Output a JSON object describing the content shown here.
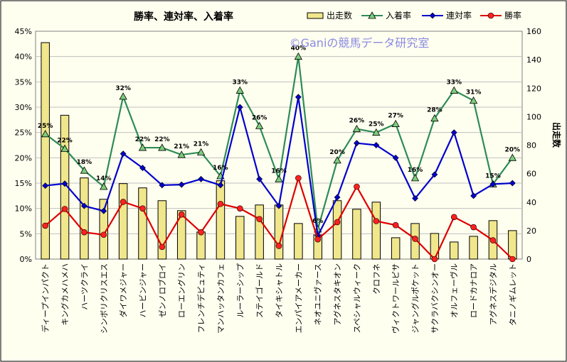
{
  "chart_data": {
    "type": "bar-line-combo",
    "title": "勝率、連対率、入着率",
    "watermark": "©Ganiの競馬データ研究室",
    "y2label": "出走数",
    "ylim": [
      0,
      45
    ],
    "y2lim": [
      0,
      160
    ],
    "yticks": [
      "0%",
      "5%",
      "10%",
      "15%",
      "20%",
      "25%",
      "30%",
      "35%",
      "40%",
      "45%"
    ],
    "y2ticks": [
      "0",
      "20",
      "40",
      "60",
      "80",
      "100",
      "120",
      "140",
      "160"
    ],
    "grid": true,
    "legend_position": "top",
    "categories": [
      "ディープインパクト",
      "キングカメハメハ",
      "ハーツクライ",
      "シンボリクリスエス",
      "ダイワメジャー",
      "ハービンジャー",
      "ゼンノロブロイ",
      "ローエングリン",
      "フレンチデピュティ",
      "マンハッタンカフェ",
      "ルーラーシップ",
      "ステイゴールド",
      "タイキシャトル",
      "エンパイアメーカー",
      "ネオユニヴァース",
      "アグネスタキオン",
      "スペシャルウィーク",
      "クロフネ",
      "ヴィクトワールピサ",
      "ジャングルポケット",
      "サクラバクシンオー",
      "オルフェーヴル",
      "ロードカナロア",
      "アグネスデジタル",
      "タニノギムレット"
    ],
    "series": [
      {
        "name": "出走数",
        "type": "bar",
        "axis": "right",
        "color": "#f0e68c",
        "values": [
          152,
          101,
          57,
          42,
          53,
          50,
          41,
          34,
          19,
          55,
          30,
          38,
          38,
          25,
          17,
          41,
          35,
          40,
          15,
          25,
          18,
          12,
          16,
          27,
          20
        ]
      },
      {
        "name": "入着率",
        "type": "line",
        "axis": "left",
        "color": "#2e8b57",
        "marker": "triangle",
        "values": [
          24.7,
          21.8,
          17.5,
          14.3,
          32.1,
          22.0,
          22.0,
          20.6,
          21.1,
          16.4,
          33.3,
          26.3,
          15.8,
          40.0,
          5.9,
          19.5,
          25.7,
          25.0,
          26.7,
          16.0,
          27.8,
          33.3,
          31.3,
          14.8,
          20.0
        ],
        "labels": [
          "25%",
          "22%",
          "18%",
          "14%",
          "32%",
          "22%",
          "22%",
          "21%",
          "21%",
          "16%",
          "33%",
          "26%",
          "16%",
          "40%",
          "6%",
          "20%",
          "26%",
          "25%",
          "27%",
          "16%",
          "28%",
          "33%",
          "31%",
          "15%",
          "20%"
        ]
      },
      {
        "name": "連対率",
        "type": "line",
        "axis": "left",
        "color": "#0000cd",
        "marker": "diamond",
        "values": [
          14.5,
          14.9,
          10.5,
          9.5,
          20.8,
          18.0,
          14.6,
          14.7,
          15.8,
          14.6,
          30.0,
          15.8,
          10.5,
          32.0,
          4.6,
          12.2,
          22.9,
          22.5,
          20.0,
          12.0,
          16.7,
          25.0,
          12.5,
          14.8,
          15.0
        ]
      },
      {
        "name": "勝率",
        "type": "line",
        "axis": "left",
        "color": "#dd0000",
        "marker": "circle",
        "values": [
          6.6,
          9.9,
          5.3,
          4.8,
          11.3,
          10.0,
          2.4,
          8.8,
          5.3,
          10.9,
          10.0,
          7.9,
          2.6,
          16.0,
          3.9,
          7.3,
          14.3,
          7.5,
          6.7,
          4.0,
          0.0,
          8.3,
          6.3,
          3.7,
          0.0
        ]
      }
    ]
  }
}
